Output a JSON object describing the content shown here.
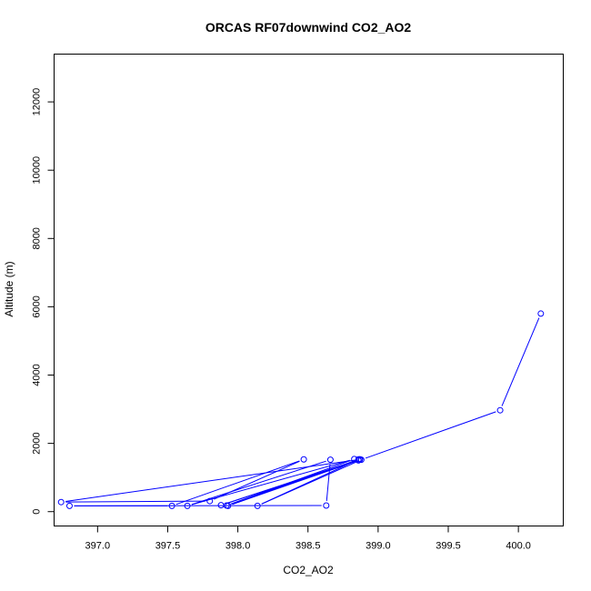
{
  "chart_data": {
    "type": "line",
    "title": "ORCAS RF07downwind CO2_AO2",
    "xlabel": "CO2_AO2",
    "ylabel": "Altitude (m)",
    "xlim": [
      396.69,
      400.32
    ],
    "ylim": [
      -420,
      13400
    ],
    "xticks": [
      {
        "value": 397.0,
        "label": "397.0"
      },
      {
        "value": 397.5,
        "label": "397.5"
      },
      {
        "value": 398.0,
        "label": "398.0"
      },
      {
        "value": 398.5,
        "label": "398.5"
      },
      {
        "value": 399.0,
        "label": "399.0"
      },
      {
        "value": 399.5,
        "label": "399.5"
      },
      {
        "value": 400.0,
        "label": "400.0"
      }
    ],
    "yticks": [
      {
        "value": 0,
        "label": "0"
      },
      {
        "value": 2000,
        "label": "2000"
      },
      {
        "value": 4000,
        "label": "4000"
      },
      {
        "value": 6000,
        "label": "6000"
      },
      {
        "value": 8000,
        "label": "8000"
      },
      {
        "value": 10000,
        "label": "10000"
      },
      {
        "value": 12000,
        "label": "12000"
      }
    ],
    "grid": false,
    "color": "#0000ff",
    "series": [
      {
        "points": [
          [
            400.16,
            5800
          ],
          [
            399.87,
            2970
          ],
          [
            398.88,
            1520
          ],
          [
            398.14,
            170
          ],
          [
            398.86,
            1530
          ],
          [
            397.93,
            170
          ],
          [
            398.86,
            1500
          ],
          [
            397.88,
            190
          ],
          [
            398.87,
            1530
          ],
          [
            397.92,
            180
          ],
          [
            398.83,
            1540
          ],
          [
            397.64,
            170
          ],
          [
            398.66,
            1520
          ],
          [
            398.63,
            180
          ],
          [
            396.8,
            170
          ],
          [
            397.53,
            170
          ],
          [
            398.47,
            1530
          ],
          [
            397.8,
            310
          ],
          [
            396.74,
            280
          ],
          [
            398.87,
            1530
          ]
        ]
      }
    ]
  }
}
